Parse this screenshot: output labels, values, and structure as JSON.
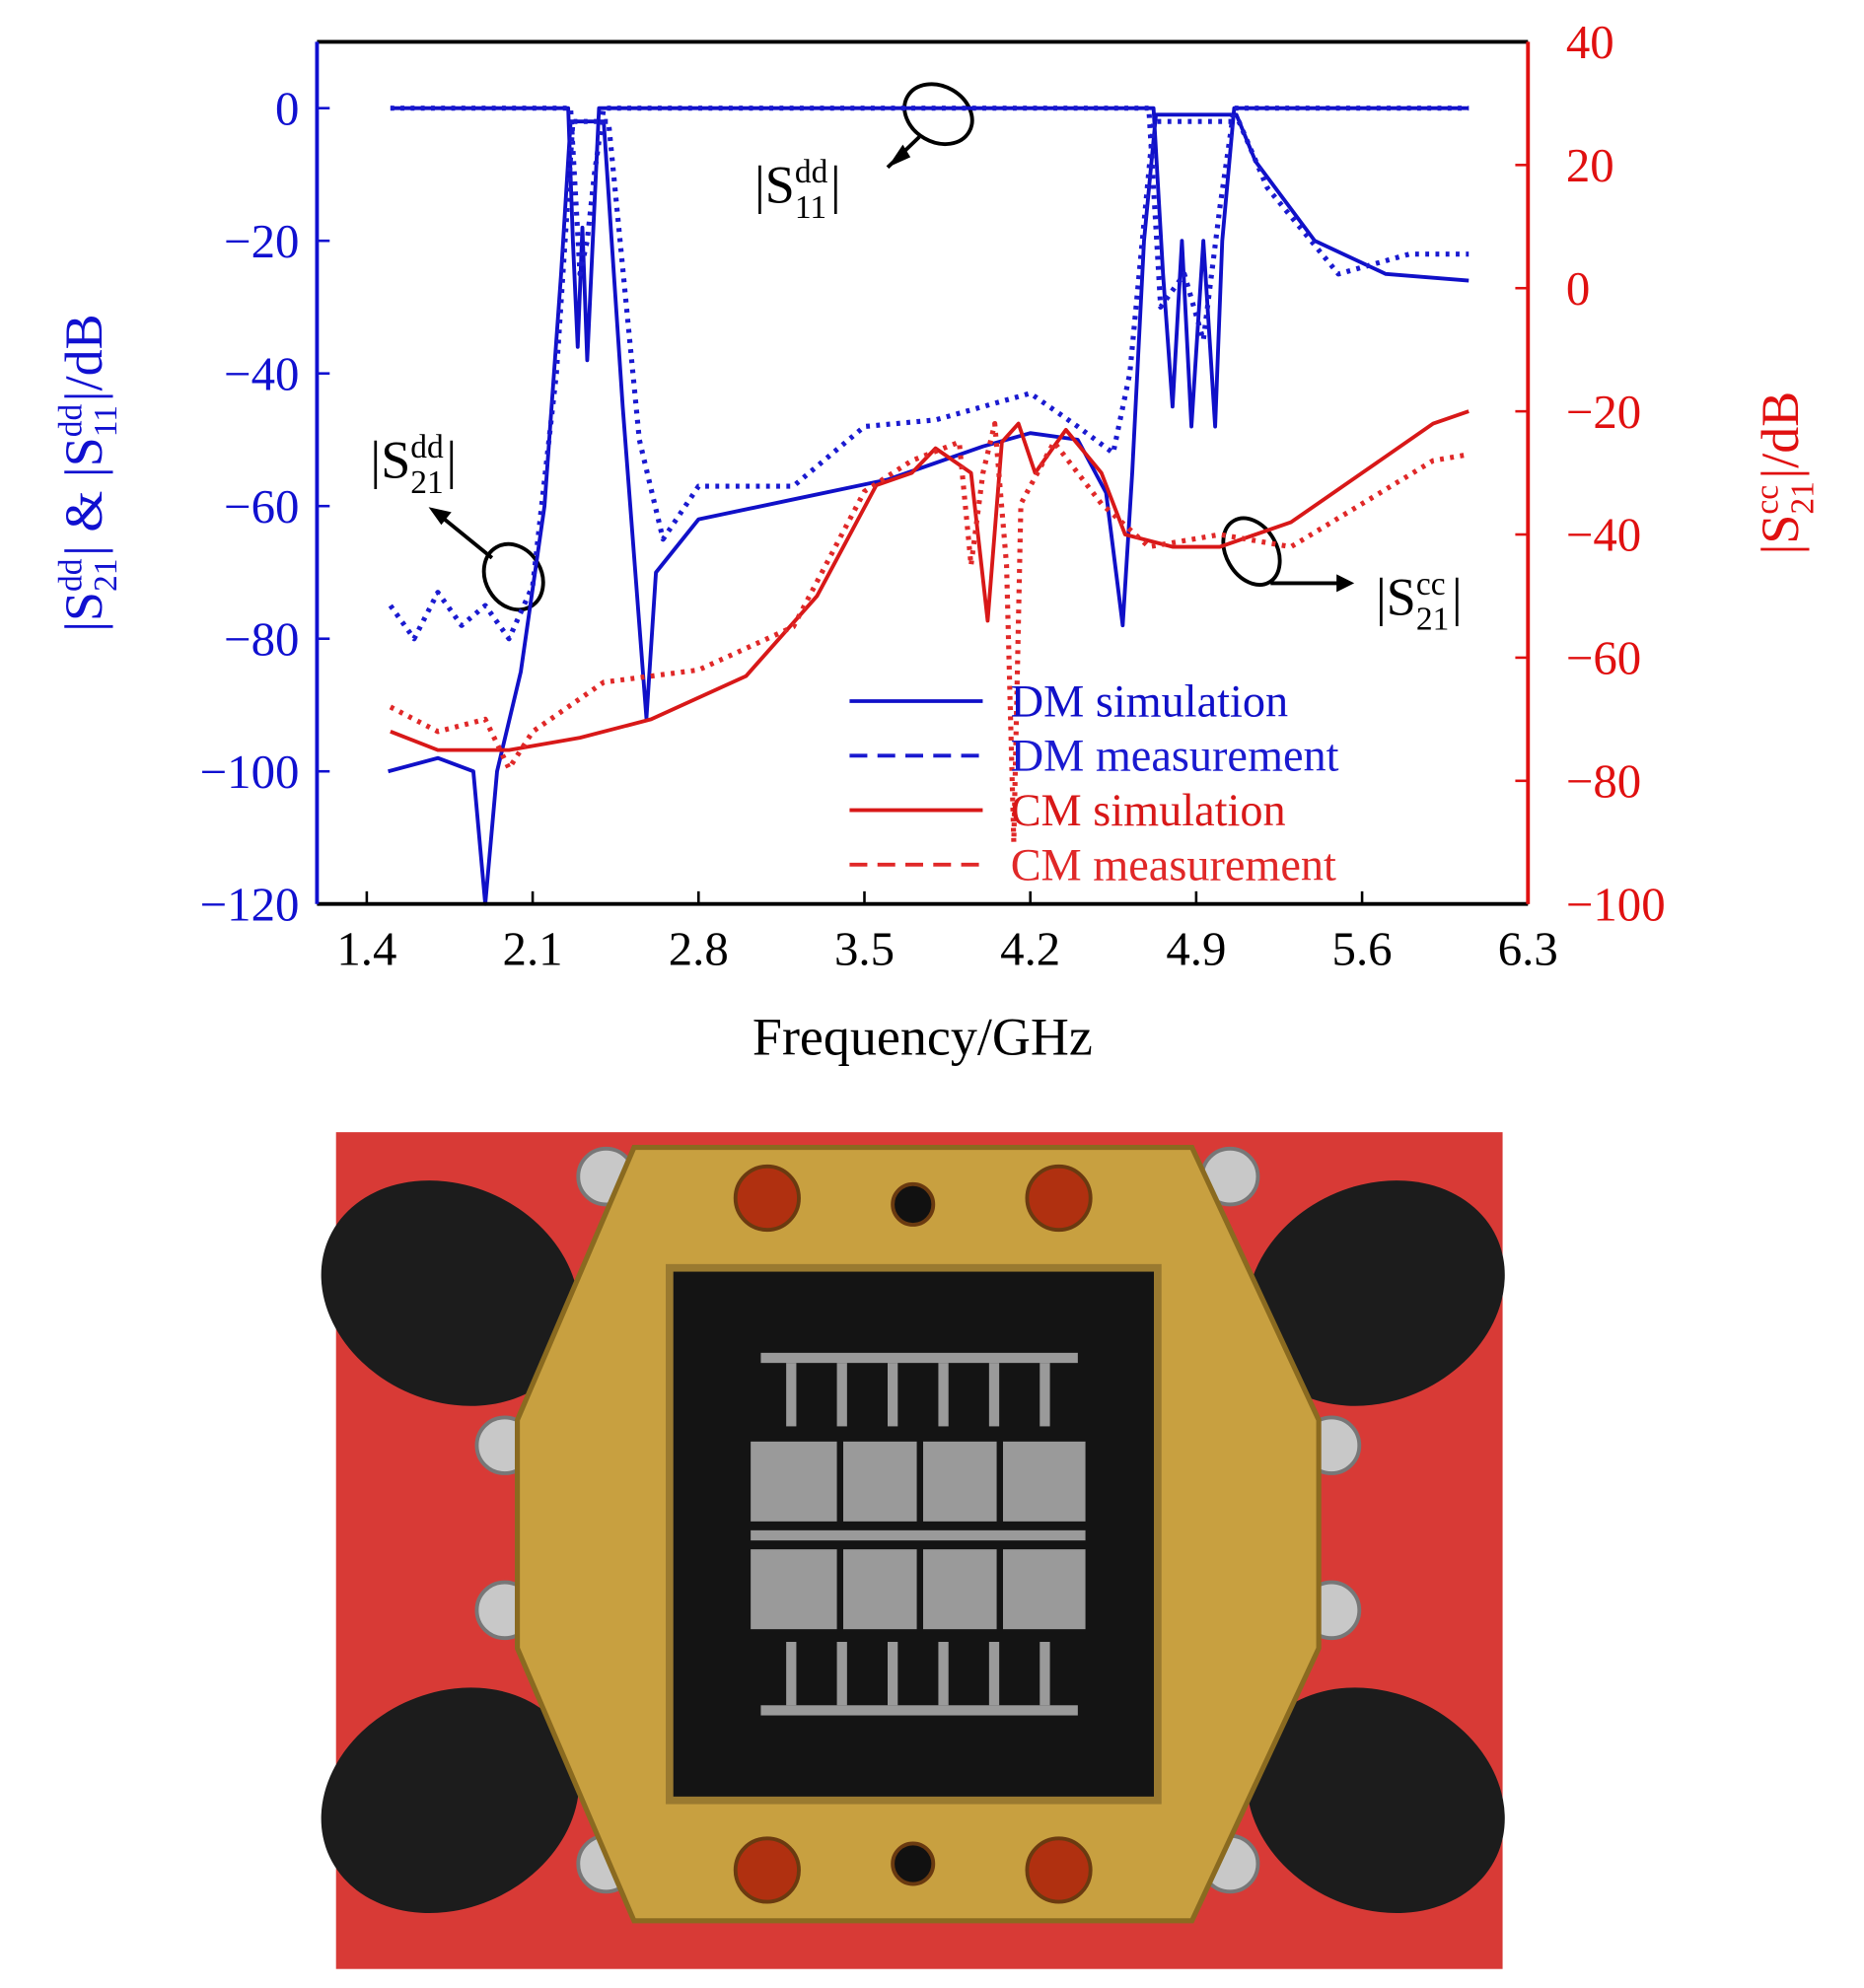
{
  "chart_data": {
    "type": "line",
    "x_label": "Frequency/GHz",
    "y_label": [
      {
        "text": "|S"
      },
      {
        "sup": "dd",
        "sub": "21"
      },
      {
        "text": "| & |S"
      },
      {
        "sup": "dd",
        "sub": "11"
      },
      {
        "text": "|/dB"
      }
    ],
    "y2_label": [
      {
        "text": "|S"
      },
      {
        "sup": "cc",
        "sub": "21"
      },
      {
        "text": "|/dB"
      }
    ],
    "xlim": [
      1.19,
      6.3
    ],
    "xticks": [
      1.4,
      2.1,
      2.8,
      3.5,
      4.2,
      4.9,
      5.6,
      6.3
    ],
    "ylim": [
      -120,
      10
    ],
    "yticks": [
      0,
      {
        "value": -20,
        "label": "−20"
      },
      {
        "value": -40,
        "label": "−40"
      },
      {
        "value": -60,
        "label": "−60"
      },
      {
        "value": -80,
        "label": "−80"
      },
      {
        "value": -100,
        "label": "−100"
      },
      {
        "value": -120,
        "label": "−120"
      }
    ],
    "y2lim": [
      -100,
      40
    ],
    "y2ticks": [
      40,
      20,
      0,
      {
        "value": -20,
        "label": "−20"
      },
      {
        "value": -40,
        "label": "−40"
      },
      {
        "value": -60,
        "label": "−60"
      },
      {
        "value": -80,
        "label": "−80"
      },
      {
        "value": -100,
        "label": "−100"
      }
    ],
    "legend": "lower right",
    "annotations": [
      [
        {
          "text": "|S"
        },
        {
          "sup": "dd",
          "sub": "11"
        },
        {
          "text": "|"
        }
      ],
      [
        {
          "text": "|S"
        },
        {
          "sup": "dd",
          "sub": "21"
        },
        {
          "text": "|"
        }
      ],
      [
        {
          "text": "|S"
        },
        {
          "sup": "cc",
          "sub": "21"
        },
        {
          "text": "|"
        }
      ]
    ],
    "series": [
      {
        "name": "DM simulation",
        "color": "#1010c8",
        "linestyle": "solid",
        "x": [
          1.49,
          1.7,
          1.85,
          1.9,
          1.95,
          2.05,
          2.15,
          2.22,
          2.26,
          2.4,
          2.48,
          2.58,
          2.62,
          2.8,
          3.2,
          3.6,
          4.0,
          4.2,
          4.4,
          4.52,
          4.59,
          4.63,
          4.68,
          4.73,
          5.07,
          5.15,
          5.4,
          5.7,
          6.05,
          null,
          1.5,
          2.25,
          2.27,
          2.29,
          2.31,
          2.33,
          2.36,
          2.38,
          4.72,
          4.76,
          4.8,
          4.84,
          4.88,
          4.93,
          4.98,
          5.01,
          5.06,
          6.05
        ],
        "values": [
          -100,
          -98,
          -100,
          -120,
          -100,
          -85,
          -60,
          -25,
          -2,
          -2,
          -45,
          -92,
          -70,
          -62,
          -59,
          -56,
          -51,
          -49,
          -50,
          -58,
          -78,
          -55,
          -20,
          -1,
          -1,
          -8,
          -20,
          -25,
          -26,
          null,
          0,
          0,
          -20,
          -36,
          -18,
          -38,
          -15,
          0,
          0,
          -25,
          -45,
          -20,
          -48,
          -20,
          -48,
          -20,
          0,
          0
        ]
      },
      {
        "name": "DM measurement",
        "color": "#1a1ad0",
        "linestyle": "dotted",
        "x": [
          1.5,
          1.6,
          1.7,
          1.8,
          1.9,
          2.0,
          2.1,
          2.2,
          2.27,
          2.42,
          2.55,
          2.65,
          2.8,
          3.2,
          3.5,
          3.8,
          4.0,
          4.2,
          4.4,
          4.55,
          4.62,
          4.72,
          5.08,
          5.2,
          5.5,
          5.8,
          6.05,
          null,
          1.5,
          2.26,
          2.3,
          2.33,
          2.36,
          2.4,
          4.7,
          4.75,
          4.85,
          4.93,
          5.0,
          5.06,
          6.05
        ],
        "values": [
          -75,
          -80,
          -73,
          -78,
          -75,
          -80,
          -72,
          -40,
          -2,
          -2,
          -50,
          -65,
          -57,
          -57,
          -48,
          -47,
          -45,
          -43,
          -48,
          -52,
          -40,
          -2,
          -2,
          -12,
          -25,
          -22,
          -22,
          null,
          0,
          0,
          -25,
          -20,
          -10,
          0,
          0,
          -30,
          -25,
          -35,
          -15,
          0,
          0
        ]
      },
      {
        "name": "CM simulation",
        "color": "#d81818",
        "linestyle": "solid",
        "axis": "y2",
        "x": [
          1.5,
          1.7,
          2.0,
          2.3,
          2.6,
          3.0,
          3.3,
          3.55,
          3.7,
          3.8,
          3.95,
          4.02,
          4.08,
          4.15,
          4.22,
          4.35,
          4.5,
          4.6,
          4.8,
          5.0,
          5.3,
          5.6,
          5.9,
          6.05
        ],
        "values": [
          -72,
          -75,
          -75,
          -73,
          -70,
          -63,
          -50,
          -32,
          -30,
          -26,
          -30,
          -54,
          -25,
          -22,
          -30,
          -23,
          -30,
          -40,
          -42,
          -42,
          -38,
          -30,
          -22,
          -20
        ]
      },
      {
        "name": "CM measurement",
        "color": "#e02828",
        "linestyle": "dotted",
        "axis": "y2",
        "x": [
          1.5,
          1.7,
          1.9,
          2.0,
          2.1,
          2.4,
          2.8,
          3.2,
          3.5,
          3.7,
          3.9,
          3.95,
          4.0,
          4.05,
          4.1,
          4.13,
          4.16,
          4.3,
          4.5,
          4.7,
          5.0,
          5.3,
          5.6,
          5.9,
          6.05
        ],
        "values": [
          -68,
          -72,
          -70,
          -78,
          -72,
          -64,
          -62,
          -55,
          -33,
          -28,
          -25,
          -45,
          -30,
          -22,
          -45,
          -90,
          -35,
          -25,
          -35,
          -42,
          -40,
          -42,
          -35,
          -28,
          -27
        ]
      }
    ]
  }
}
